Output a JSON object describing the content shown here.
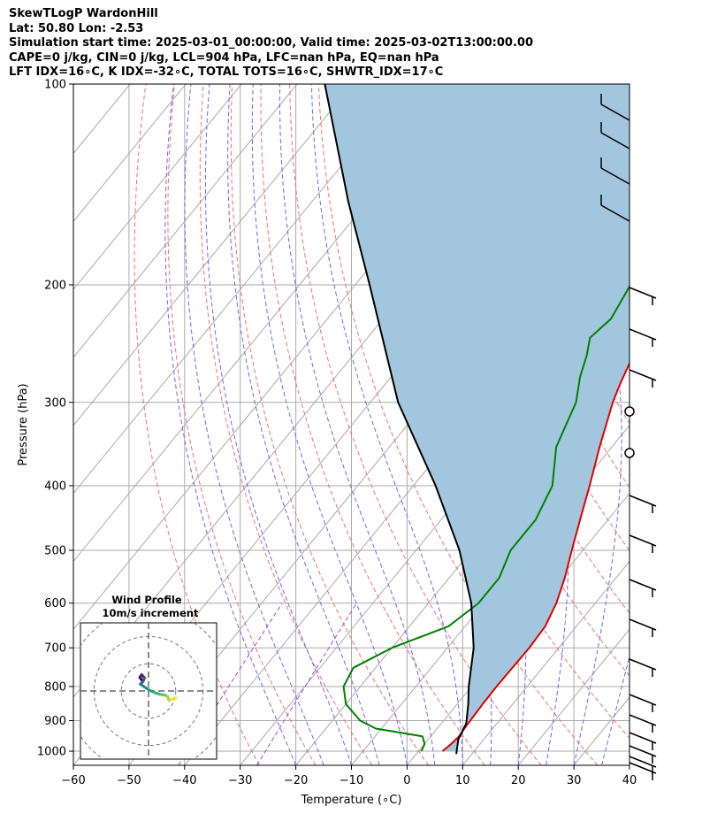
{
  "header": {
    "line1": "SkewTLogP WardonHill",
    "line2": "Lat: 50.80   Lon: -2.53",
    "line3": "Simulation start time: 2025-03-01_00:00:00, Valid time: 2025-03-02T13:00:00.00",
    "line4": "CAPE=0 j/kg, CIN=0 j/kg, LCL=904 hPa, LFC=nan hPa, EQ=nan hPa",
    "line5": "LFT IDX=16∘C, K IDX=-32∘C, TOTAL TOTS=16∘C, SHWTR_IDX=17∘C"
  },
  "chart_data": [
    {
      "type": "line",
      "subtype": "skew-t-log-p",
      "xlabel": "Temperature (∘C)",
      "ylabel": "Pressure (hPa)",
      "xlim": [
        -60,
        40
      ],
      "ylim": [
        1050,
        100
      ],
      "yscale": "log",
      "xticks": [
        -60,
        -50,
        -40,
        -30,
        -20,
        -10,
        0,
        10,
        20,
        30,
        40
      ],
      "yticks": [
        1000,
        900,
        800,
        700,
        600,
        500,
        400,
        300,
        200,
        100
      ],
      "grid": true,
      "colors": {
        "temperature": "#e00000",
        "dewpoint": "#008000",
        "parcel": "#000000",
        "shade": "#a3c6df",
        "dry_adiabat": "#f07070",
        "moist_adiabat": "#6a6aee",
        "mixing_ratio": "#9b4fd6",
        "isotherm": "#aaaaaa"
      },
      "series": [
        {
          "key": "temperature",
          "points": [
            [
              1000,
              4.3
            ],
            [
              975,
              4.8
            ],
            [
              950,
              5.1
            ],
            [
              925,
              4.9
            ],
            [
              900,
              4.8
            ],
            [
              850,
              4.6
            ],
            [
              800,
              4.5
            ],
            [
              750,
              4.6
            ],
            [
              700,
              4.7
            ],
            [
              650,
              4.4
            ],
            [
              600,
              3.0
            ],
            [
              550,
              0.8
            ],
            [
              500,
              -2.0
            ],
            [
              450,
              -5.0
            ],
            [
              400,
              -8.3
            ],
            [
              350,
              -12.2
            ],
            [
              300,
              -16.4
            ],
            [
              280,
              -17.9
            ],
            [
              250,
              -20.0
            ],
            [
              230,
              -20.5
            ],
            [
              210,
              -20.3
            ],
            [
              200,
              -20.0
            ],
            [
              185,
              -17.8
            ],
            [
              170,
              -14.0
            ],
            [
              160,
              -12.0
            ],
            [
              140,
              -9.8
            ],
            [
              120,
              -7.5
            ],
            [
              100,
              -7.0
            ]
          ]
        },
        {
          "key": "dewpoint",
          "points": [
            [
              1000,
              0.5
            ],
            [
              975,
              0.0
            ],
            [
              950,
              -1.5
            ],
            [
              925,
              -11.0
            ],
            [
              900,
              -15.0
            ],
            [
              850,
              -20.0
            ],
            [
              800,
              -23.0
            ],
            [
              750,
              -24.0
            ],
            [
              700,
              -20.0
            ],
            [
              650,
              -13.0
            ],
            [
              600,
              -11.0
            ],
            [
              550,
              -11.0
            ],
            [
              500,
              -13.0
            ],
            [
              450,
              -13.0
            ],
            [
              400,
              -15.0
            ],
            [
              350,
              -20.0
            ],
            [
              300,
              -23.0
            ],
            [
              275,
              -26.0
            ],
            [
              255,
              -28.0
            ],
            [
              240,
              -30.0
            ],
            [
              225,
              -29.0
            ],
            [
              200,
              -30.5
            ],
            [
              180,
              -30.0
            ],
            [
              165,
              -30.0
            ],
            [
              155,
              -32.0
            ],
            [
              145,
              -35.0
            ],
            [
              130,
              -35.0
            ],
            [
              110,
              -31.0
            ],
            [
              100,
              -30.0
            ]
          ]
        },
        {
          "key": "parcel",
          "points": [
            [
              1010,
              7.2
            ],
            [
              960,
              5.4
            ],
            [
              910,
              4.5
            ],
            [
              904,
              4.3
            ],
            [
              850,
              2.0
            ],
            [
              800,
              -0.5
            ],
            [
              700,
              -5.3
            ],
            [
              600,
              -12.3
            ],
            [
              500,
              -22.2
            ],
            [
              400,
              -36.0
            ],
            [
              300,
              -55.0
            ],
            [
              200,
              -77.4
            ],
            [
              150,
              -93.5
            ],
            [
              100,
              -115.0
            ]
          ]
        }
      ]
    },
    {
      "type": "scatter",
      "subtype": "hodograph",
      "title": "Wind Profile",
      "subtitle": "10m/s increment",
      "ring_step": 10,
      "range": [
        -25,
        25
      ],
      "points": [
        [
          -2.5,
          4.0
        ],
        [
          -3.2,
          5.0
        ],
        [
          -2.5,
          6.0
        ],
        [
          -1.5,
          4.8
        ],
        [
          -2.0,
          3.5
        ],
        [
          -3.0,
          2.5
        ],
        [
          -1.5,
          1.5
        ],
        [
          0.0,
          0.5
        ],
        [
          2.0,
          -0.5
        ],
        [
          4.0,
          -1.2
        ],
        [
          6.0,
          -1.5
        ],
        [
          7.0,
          -2.0
        ],
        [
          7.5,
          -3.5
        ],
        [
          8.5,
          -3.0
        ],
        [
          10.0,
          -2.5
        ]
      ]
    }
  ]
}
